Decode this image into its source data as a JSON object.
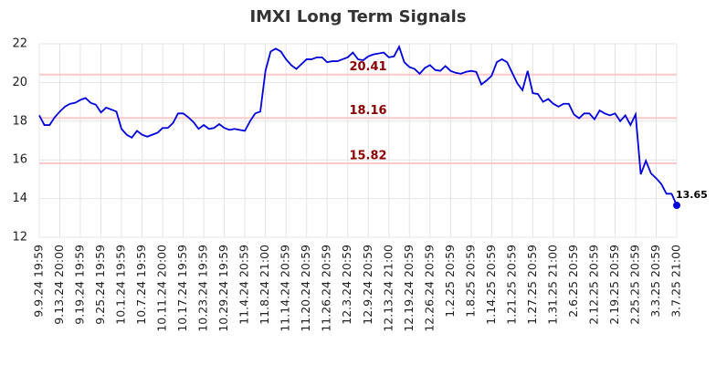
{
  "chart_data": {
    "type": "line",
    "title": "IMXI Long Term Signals",
    "categories": [
      "9.9.24 19:59",
      null,
      null,
      null,
      "9.13.24 20:00",
      null,
      null,
      null,
      "9.19.24 19:59",
      null,
      null,
      null,
      "9.25.24 19:59",
      null,
      null,
      null,
      "10.1.24 19:59",
      null,
      null,
      null,
      "10.7.24 19:59",
      null,
      null,
      null,
      "10.11.24 20:00",
      null,
      null,
      null,
      "10.17.24 19:59",
      null,
      null,
      null,
      "10.23.24 19:59",
      null,
      null,
      null,
      "10.29.24 19:59",
      null,
      null,
      null,
      "11.4.24 20:59",
      null,
      null,
      null,
      "11.8.24 21:00",
      null,
      null,
      null,
      "11.14.24 20:59",
      null,
      null,
      null,
      "11.20.24 20:59",
      null,
      null,
      null,
      "11.26.24 20:59",
      null,
      null,
      null,
      "12.3.24 20:59",
      null,
      null,
      null,
      "12.9.24 20:59",
      null,
      null,
      null,
      "12.13.24 21:00",
      null,
      null,
      null,
      "12.19.24 20:59",
      null,
      null,
      null,
      "12.26.24 20:59",
      null,
      null,
      null,
      "1.2.25 20:59",
      null,
      null,
      null,
      "1.8.25 20:59",
      null,
      null,
      null,
      "1.14.25 20:59",
      null,
      null,
      null,
      "1.21.25 20:59",
      null,
      null,
      null,
      "1.27.25 20:59",
      null,
      null,
      null,
      "1.31.25 21:00",
      null,
      null,
      null,
      "2.6.25 20:59",
      null,
      null,
      null,
      "2.12.25 20:59",
      null,
      null,
      null,
      "2.19.25 20:59",
      null,
      null,
      null,
      "2.25.25 20:59",
      null,
      null,
      null,
      "3.3.25 20:59",
      null,
      null,
      null,
      "3.7.25 21:00"
    ],
    "values": [
      18.3,
      17.8,
      17.8,
      18.2,
      18.5,
      18.75,
      18.9,
      18.95,
      19.1,
      19.2,
      18.95,
      18.85,
      18.45,
      18.7,
      18.6,
      18.5,
      17.6,
      17.3,
      17.15,
      17.5,
      17.3,
      17.2,
      17.3,
      17.4,
      17.65,
      17.65,
      17.9,
      18.4,
      18.4,
      18.2,
      17.95,
      17.6,
      17.8,
      17.6,
      17.65,
      17.85,
      17.65,
      17.55,
      17.6,
      17.55,
      17.5,
      18.0,
      18.4,
      18.5,
      20.6,
      21.6,
      21.75,
      21.6,
      21.2,
      20.9,
      20.7,
      20.95,
      21.2,
      21.2,
      21.3,
      21.3,
      21.05,
      21.1,
      21.1,
      21.2,
      21.3,
      21.55,
      21.2,
      21.15,
      21.35,
      21.45,
      21.5,
      21.55,
      21.3,
      21.35,
      21.85,
      21.05,
      20.8,
      20.7,
      20.45,
      20.75,
      20.9,
      20.65,
      20.6,
      20.85,
      20.6,
      20.5,
      20.45,
      20.55,
      20.6,
      20.55,
      19.9,
      20.1,
      20.35,
      21.05,
      21.2,
      21.05,
      20.5,
      19.95,
      19.6,
      20.6,
      19.45,
      19.4,
      19.0,
      19.15,
      18.9,
      18.75,
      18.9,
      18.9,
      18.35,
      18.15,
      18.4,
      18.4,
      18.1,
      18.55,
      18.4,
      18.3,
      18.4,
      18.0,
      18.3,
      17.8,
      18.35,
      15.25,
      15.95,
      15.3,
      15.05,
      14.75,
      14.25,
      14.25,
      13.65
    ],
    "color": "#0000dd",
    "signal_lines": [
      20.41,
      18.16,
      15.82
    ],
    "signal_color": "#8b0000",
    "ylim": [
      12,
      22
    ],
    "yticks": [
      12,
      14,
      16,
      18,
      20,
      22
    ],
    "grid": true
  }
}
